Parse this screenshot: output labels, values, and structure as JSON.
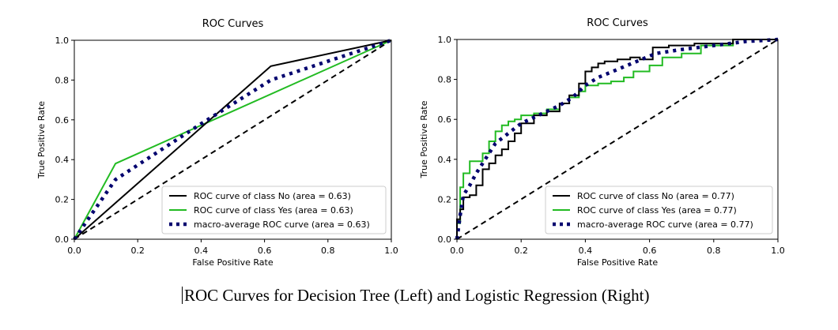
{
  "caption": "ROC Curves for Decision Tree (Left) and Logistic Regression (Right)",
  "colors": {
    "class_no": "#000000",
    "class_yes": "#22bb22",
    "macro": "#00006e",
    "diagonal": "#000000"
  },
  "chart_data": [
    {
      "type": "line",
      "title": "ROC Curves",
      "xlabel": "False Positive Rate",
      "ylabel": "True Positive Rate",
      "xlim": [
        0,
        1
      ],
      "ylim": [
        0,
        1
      ],
      "xticks": [
        "0.0",
        "0.2",
        "0.4",
        "0.6",
        "0.8",
        "1.0"
      ],
      "yticks": [
        "0.0",
        "0.2",
        "0.4",
        "0.6",
        "0.8",
        "1.0"
      ],
      "grid": false,
      "legend_position": "lower-right",
      "series": [
        {
          "name": "ROC curve of class No (area = 0.63)",
          "style": "solid",
          "color": "#000000",
          "x": [
            0,
            0.62,
            1
          ],
          "y": [
            0,
            0.87,
            1
          ]
        },
        {
          "name": "ROC curve of class Yes (area = 0.63)",
          "style": "solid",
          "color": "#22bb22",
          "x": [
            0,
            0.13,
            1
          ],
          "y": [
            0,
            0.38,
            1
          ]
        },
        {
          "name": "macro-average ROC curve (area = 0.63)",
          "style": "dotted",
          "color": "#00006e",
          "x": [
            0,
            0.13,
            0.4,
            0.62,
            1
          ],
          "y": [
            0,
            0.3,
            0.58,
            0.8,
            1
          ]
        },
        {
          "name": "",
          "style": "dashed",
          "color": "#000000",
          "x": [
            0,
            1
          ],
          "y": [
            0,
            1
          ]
        }
      ]
    },
    {
      "type": "line",
      "title": "ROC Curves",
      "xlabel": "False Positive Rate",
      "ylabel": "True Positive Rate",
      "xlim": [
        0,
        1
      ],
      "ylim": [
        0,
        1
      ],
      "xticks": [
        "0.0",
        "0.2",
        "0.4",
        "0.6",
        "0.8",
        "1.0"
      ],
      "yticks": [
        "0.0",
        "0.2",
        "0.4",
        "0.6",
        "0.8",
        "1.0"
      ],
      "grid": false,
      "legend_position": "lower-right",
      "series": [
        {
          "name": "ROC curve of class No (area = 0.77)",
          "style": "solid",
          "color": "#000000",
          "x": [
            0,
            0,
            0.01,
            0.01,
            0.02,
            0.02,
            0.04,
            0.04,
            0.06,
            0.06,
            0.08,
            0.08,
            0.1,
            0.1,
            0.12,
            0.12,
            0.14,
            0.14,
            0.16,
            0.16,
            0.18,
            0.18,
            0.2,
            0.2,
            0.24,
            0.24,
            0.28,
            0.28,
            0.32,
            0.32,
            0.35,
            0.35,
            0.38,
            0.38,
            0.4,
            0.4,
            0.42,
            0.42,
            0.44,
            0.44,
            0.46,
            0.46,
            0.5,
            0.5,
            0.54,
            0.54,
            0.57,
            0.57,
            0.61,
            0.61,
            0.66,
            0.66,
            0.74,
            0.74,
            0.86,
            0.86,
            1
          ],
          "y": [
            0,
            0.1,
            0.1,
            0.15,
            0.15,
            0.21,
            0.21,
            0.22,
            0.22,
            0.27,
            0.27,
            0.35,
            0.35,
            0.38,
            0.38,
            0.42,
            0.42,
            0.45,
            0.45,
            0.49,
            0.49,
            0.53,
            0.53,
            0.58,
            0.58,
            0.62,
            0.62,
            0.64,
            0.64,
            0.68,
            0.68,
            0.72,
            0.72,
            0.78,
            0.78,
            0.84,
            0.84,
            0.86,
            0.86,
            0.88,
            0.88,
            0.89,
            0.89,
            0.9,
            0.9,
            0.91,
            0.91,
            0.9,
            0.9,
            0.96,
            0.96,
            0.97,
            0.97,
            0.98,
            0.98,
            1.0,
            1.0
          ]
        },
        {
          "name": "ROC curve of class Yes (area = 0.77)",
          "style": "solid",
          "color": "#22bb22",
          "x": [
            0,
            0,
            0.01,
            0.01,
            0.02,
            0.02,
            0.04,
            0.04,
            0.08,
            0.08,
            0.1,
            0.1,
            0.12,
            0.12,
            0.14,
            0.14,
            0.16,
            0.16,
            0.18,
            0.18,
            0.2,
            0.2,
            0.24,
            0.24,
            0.28,
            0.28,
            0.32,
            0.32,
            0.35,
            0.35,
            0.38,
            0.38,
            0.4,
            0.4,
            0.44,
            0.44,
            0.48,
            0.48,
            0.52,
            0.52,
            0.55,
            0.55,
            0.6,
            0.6,
            0.64,
            0.64,
            0.7,
            0.7,
            0.76,
            0.76,
            0.86,
            0.86,
            1
          ],
          "y": [
            0,
            0.08,
            0.08,
            0.26,
            0.26,
            0.33,
            0.33,
            0.39,
            0.39,
            0.43,
            0.43,
            0.49,
            0.49,
            0.54,
            0.54,
            0.57,
            0.57,
            0.59,
            0.59,
            0.6,
            0.6,
            0.62,
            0.62,
            0.63,
            0.63,
            0.65,
            0.65,
            0.68,
            0.68,
            0.71,
            0.71,
            0.74,
            0.74,
            0.77,
            0.77,
            0.78,
            0.78,
            0.79,
            0.79,
            0.81,
            0.81,
            0.84,
            0.84,
            0.87,
            0.87,
            0.91,
            0.91,
            0.93,
            0.93,
            0.97,
            0.97,
            1.0,
            1.0
          ]
        },
        {
          "name": "macro-average ROC curve (area = 0.77)",
          "style": "dotted",
          "color": "#00006e",
          "x": [
            0,
            0.01,
            0.02,
            0.04,
            0.06,
            0.08,
            0.1,
            0.12,
            0.16,
            0.2,
            0.24,
            0.28,
            0.32,
            0.36,
            0.4,
            0.44,
            0.5,
            0.56,
            0.62,
            0.7,
            0.8,
            0.9,
            1
          ],
          "y": [
            0,
            0.12,
            0.22,
            0.27,
            0.33,
            0.38,
            0.43,
            0.48,
            0.53,
            0.58,
            0.61,
            0.64,
            0.67,
            0.71,
            0.77,
            0.81,
            0.85,
            0.89,
            0.93,
            0.95,
            0.97,
            0.99,
            1.0
          ]
        },
        {
          "name": "",
          "style": "dashed",
          "color": "#000000",
          "x": [
            0,
            1
          ],
          "y": [
            0,
            1
          ]
        }
      ]
    }
  ]
}
